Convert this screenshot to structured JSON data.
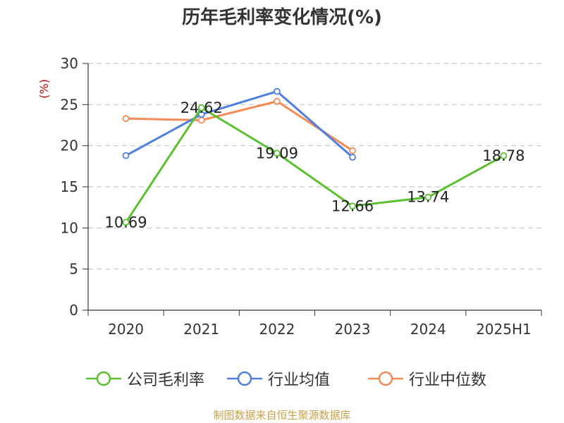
{
  "title": "历年毛利率变化情况(%)",
  "source": "制图数据来自恒生聚源数据库",
  "chart_data": {
    "type": "line",
    "title": "历年毛利率变化情况(%)",
    "ylabel": "(%)",
    "xlabel": "",
    "categories": [
      "2020",
      "2021",
      "2022",
      "2023",
      "2024",
      "2025H1"
    ],
    "ylim": [
      0,
      30
    ],
    "yticks": [
      0,
      5,
      10,
      15,
      20,
      25,
      30
    ],
    "grid": true,
    "legend_position": "bottom",
    "series": [
      {
        "name": "公司毛利率",
        "color": "#5ac02f",
        "labels": true,
        "values": [
          10.69,
          24.62,
          19.09,
          12.66,
          13.74,
          18.78
        ]
      },
      {
        "name": "行业均值",
        "color": "#4e7fe0",
        "labels": false,
        "values": [
          18.8,
          23.8,
          26.6,
          18.6,
          null,
          null
        ]
      },
      {
        "name": "行业中位数",
        "color": "#f48b57",
        "labels": false,
        "values": [
          23.3,
          23.1,
          25.4,
          19.4,
          null,
          null
        ]
      }
    ]
  }
}
